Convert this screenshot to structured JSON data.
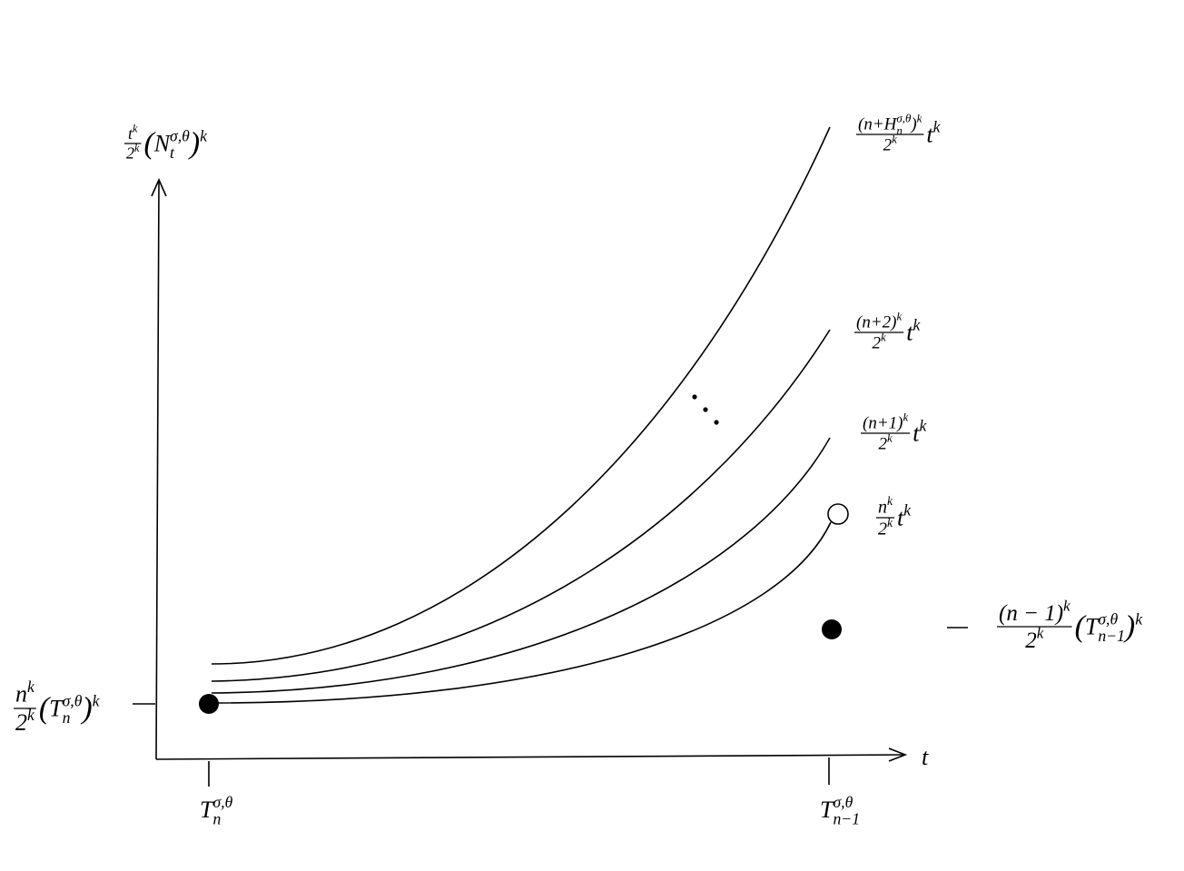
{
  "y_axis": {
    "label": {
      "num": [
        "t",
        "k"
      ],
      "den": [
        "2",
        "k"
      ],
      "tail": [
        "(",
        "N",
        "t",
        "σ,θ",
        ")",
        "k"
      ]
    }
  },
  "x_axis": {
    "label": "t"
  },
  "x_ticks": [
    [
      "T",
      "n",
      "σ,θ"
    ],
    [
      "T",
      "n−1",
      "σ,θ"
    ]
  ],
  "y_tick": {
    "num": [
      "n",
      "k"
    ],
    "den": [
      "2",
      "k"
    ],
    "tail": [
      "(",
      "T",
      "n",
      "σ,θ",
      ")",
      "k"
    ]
  },
  "curves": [
    {
      "num": [
        "(n+",
        "H",
        "n",
        "σ,θ",
        ")",
        "k"
      ],
      "den": [
        "2",
        "k"
      ],
      "tail": [
        "t",
        "k"
      ]
    },
    {
      "num": [
        "(n+2)",
        "k"
      ],
      "den": [
        "2",
        "k"
      ],
      "tail": [
        "t",
        "k"
      ]
    },
    {
      "num": [
        "(n+1)",
        "k"
      ],
      "den": [
        "2",
        "k"
      ],
      "tail": [
        "t",
        "k"
      ]
    },
    {
      "num": [
        "n",
        "k"
      ],
      "den": [
        "2",
        "k"
      ],
      "tail": [
        "t",
        "k"
      ]
    }
  ],
  "jump": {
    "num": [
      "(n − 1)",
      "k"
    ],
    "den": [
      "2",
      "k"
    ],
    "tail": [
      "(",
      "T",
      "n−1",
      "σ,θ",
      ")",
      "k"
    ]
  }
}
